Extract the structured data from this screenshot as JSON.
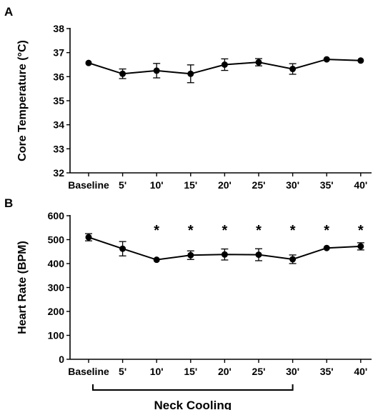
{
  "chart_data": [
    {
      "panel": "A",
      "type": "line",
      "categories": [
        "Baseline",
        "5'",
        "10'",
        "15'",
        "20'",
        "25'",
        "30'",
        "35'",
        "40'"
      ],
      "values": [
        36.57,
        36.12,
        36.25,
        36.12,
        36.5,
        36.6,
        36.32,
        36.72,
        36.67
      ],
      "errors": [
        0.0,
        0.2,
        0.3,
        0.37,
        0.24,
        0.15,
        0.22,
        0.0,
        0.0
      ],
      "ylabel": "Core Temperature (°C)",
      "xlabel": "",
      "ylim": [
        32,
        38
      ],
      "yticks": [
        32,
        33,
        34,
        35,
        36,
        37,
        38
      ],
      "significant": [],
      "grid": false
    },
    {
      "panel": "B",
      "type": "line",
      "categories": [
        "Baseline",
        "5'",
        "10'",
        "15'",
        "20'",
        "25'",
        "30'",
        "35'",
        "40'"
      ],
      "values": [
        510,
        462,
        416,
        435,
        438,
        437,
        418,
        465,
        472
      ],
      "errors": [
        15,
        30,
        0,
        18,
        23,
        25,
        18,
        0,
        15
      ],
      "ylabel": "Heart Rate (BPM)",
      "xlabel": "",
      "ylim": [
        0,
        600
      ],
      "yticks": [
        0,
        100,
        200,
        300,
        400,
        500,
        600
      ],
      "significant": [
        2,
        3,
        4,
        5,
        6,
        7,
        8
      ],
      "significance_marker": "*",
      "bracket": {
        "from_index": 0,
        "to_index": 6,
        "label": "Neck Cooling"
      },
      "grid": false
    }
  ]
}
